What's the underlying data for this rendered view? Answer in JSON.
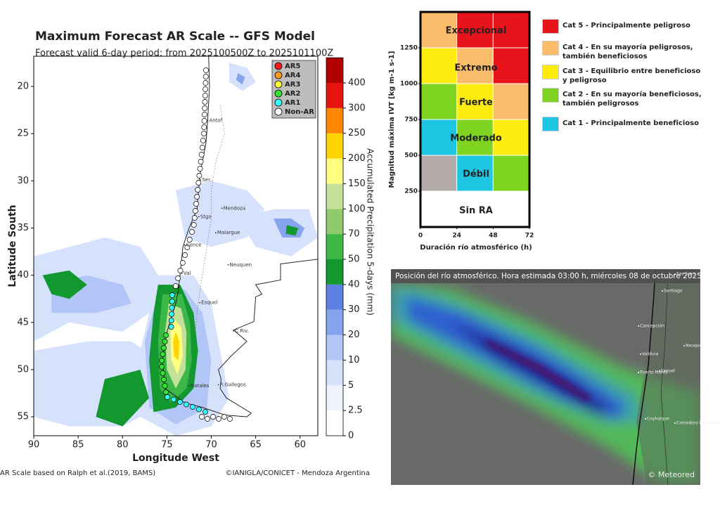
{
  "map": {
    "title": "Maximum Forecast AR Scale -- GFS Model",
    "subtitle": "Forecast valid 6-day period: from 2025100500Z to 2025101100Z",
    "x_label": "Longitude West",
    "y_label": "Latitude South",
    "xlim": [
      90,
      58
    ],
    "ylim": [
      16.8,
      57
    ],
    "xticks": [
      90,
      85,
      80,
      75,
      70,
      65,
      60
    ],
    "yticks": [
      20,
      25,
      30,
      35,
      40,
      45,
      50,
      55
    ],
    "legend": [
      {
        "name": "AR5",
        "color": "#ff1a1a"
      },
      {
        "name": "AR4",
        "color": "#ff9a1a"
      },
      {
        "name": "AR3",
        "color": "#ffff33"
      },
      {
        "name": "AR2",
        "color": "#33e533"
      },
      {
        "name": "AR1",
        "color": "#33ffff"
      },
      {
        "name": "Non-AR",
        "color": "#ffffff"
      }
    ],
    "colorbar": {
      "label": "Accumulated Precipitation 5-days (mm)",
      "ticks": [
        0,
        2.5,
        5,
        10,
        20,
        30,
        40,
        50,
        70,
        100,
        150,
        200,
        250,
        300,
        400
      ],
      "colors": [
        "#ffffff",
        "#eef3fd",
        "#d6e2fb",
        "#b1c6f6",
        "#86a4ee",
        "#5d80e2",
        "#12982f",
        "#3cb849",
        "#8fcb6c",
        "#c4e19a",
        "#ffff80",
        "#ffd400",
        "#ff8800",
        "#e8140f",
        "#b00000",
        "#6e0000",
        "#000000"
      ]
    },
    "places": [
      "Antof",
      "Ser.",
      "Mendoza",
      "Stgo",
      "Malargue",
      "Conce",
      "Val",
      "Neuquen",
      "Esquel",
      "C.Riv.",
      "Natales",
      "R.Gallegos"
    ],
    "notes": [
      "AR Scale based on Ralph et al.(2019, BAMS)",
      "©IANIGLA/CONICET - Mendoza Argentina"
    ]
  },
  "matrix": {
    "y_label": "Magnitud máxima IVT [kg m-1 s-1]",
    "x_label": "Duración río atmosférico (h)",
    "xlim": [
      0,
      72
    ],
    "ylim": [
      0,
      1500
    ],
    "xticks": [
      0,
      24,
      48,
      72
    ],
    "yticks": [
      250,
      500,
      750,
      1000,
      1250
    ],
    "levels": [
      "Sin RA",
      "Débil",
      "Moderado",
      "Fuerte",
      "Extremo",
      "Excepcional"
    ]
  },
  "categories": [
    {
      "label": "Cat 5 - Principalmente peligroso",
      "color": "#e8141b"
    },
    {
      "label": "Cat 4 - En su mayoría peligrosos, también beneficiosos",
      "color": "#fbbd6c"
    },
    {
      "label": "Cat 3 - Equilibrio entre beneficioso y peligroso",
      "color": "#ffec0f"
    },
    {
      "label": "Cat 2 - En su mayoría beneficiosos, también peligrosos",
      "color": "#7fd321"
    },
    {
      "label": "Cat 1 - Principalmente beneficioso",
      "color": "#1ec6e2"
    }
  ],
  "satellite": {
    "caption": "Posición del río atmosférico. Hora estimada 03:00 h, miércoles 08 de octubre 2025",
    "credit": "© Meteored",
    "places": [
      "San Juan",
      "Santiago",
      "Concepción",
      "Neuquen",
      "Valdivia",
      "Puerto Montt",
      "Esquel",
      "Coyhaique",
      "Comodoro Rivadavia"
    ]
  }
}
